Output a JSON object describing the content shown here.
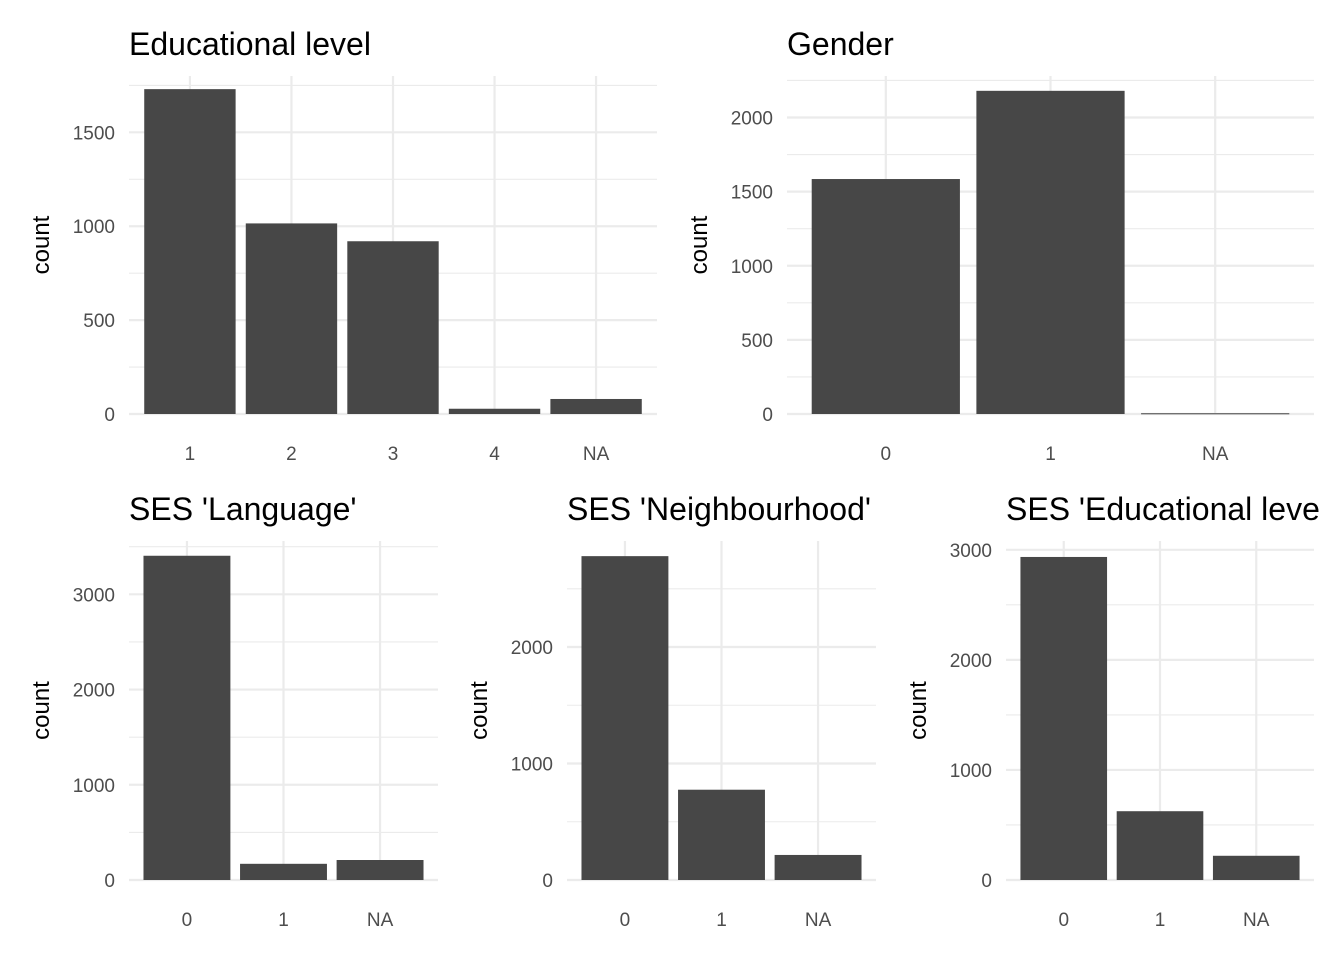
{
  "chart_data": [
    {
      "type": "bar",
      "title": "Educational level",
      "xlabel": "",
      "ylabel": "count",
      "categories": [
        "1",
        "2",
        "3",
        "4",
        "NA"
      ],
      "values": [
        1730,
        1015,
        920,
        28,
        80
      ],
      "ylim": [
        0,
        1800
      ],
      "yticks": [
        0,
        500,
        1000,
        1500
      ],
      "grid": true
    },
    {
      "type": "bar",
      "title": "Gender",
      "xlabel": "",
      "ylabel": "count",
      "categories": [
        "0",
        "1",
        "NA"
      ],
      "values": [
        1585,
        2180,
        5
      ],
      "ylim": [
        0,
        2280
      ],
      "yticks": [
        0,
        500,
        1000,
        1500,
        2000
      ],
      "grid": true
    },
    {
      "type": "bar",
      "title": "SES 'Language'",
      "xlabel": "",
      "ylabel": "count",
      "categories": [
        "0",
        "1",
        "NA"
      ],
      "values": [
        3405,
        170,
        210
      ],
      "ylim": [
        0,
        3560
      ],
      "yticks": [
        0,
        1000,
        2000,
        3000
      ],
      "grid": true
    },
    {
      "type": "bar",
      "title": "SES 'Neighbourhood'",
      "xlabel": "",
      "ylabel": "count",
      "categories": [
        "0",
        "1",
        "NA"
      ],
      "values": [
        2780,
        775,
        215
      ],
      "ylim": [
        0,
        2910
      ],
      "yticks": [
        0,
        1000,
        2000
      ],
      "grid": true
    },
    {
      "type": "bar",
      "title": "SES 'Educational leve",
      "xlabel": "",
      "ylabel": "count",
      "categories": [
        "0",
        "1",
        "NA"
      ],
      "values": [
        2935,
        625,
        220
      ],
      "ylim": [
        0,
        3080
      ],
      "yticks": [
        0,
        1000,
        2000,
        3000
      ],
      "grid": true
    }
  ]
}
